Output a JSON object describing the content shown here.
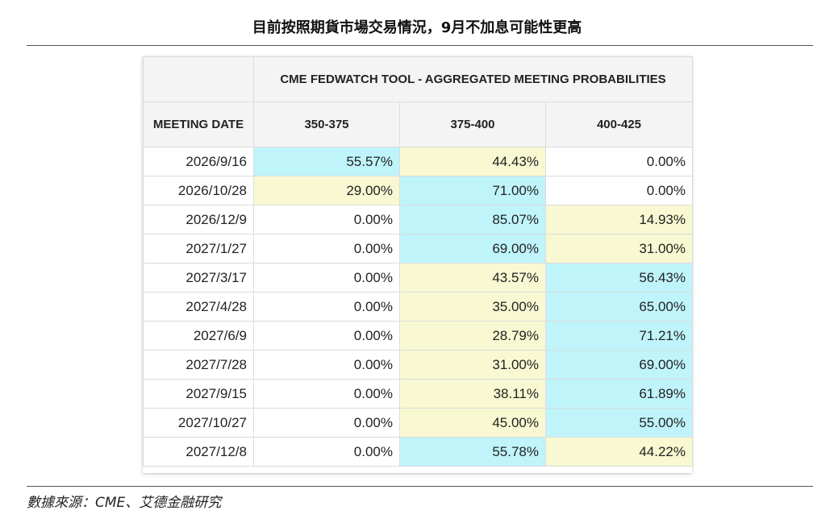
{
  "title": "目前按照期貨市場交易情況，9月不加息可能性更高",
  "source": "數據來源：CME、艾德金融研究",
  "colors": {
    "blue": "#bff4fb",
    "yellow": "#f8f8d2",
    "white": "#ffffff"
  },
  "chart_data": {
    "type": "table",
    "title": "CME FEDWATCH TOOL - AGGREGATED MEETING PROBABILITIES",
    "row_header": "MEETING DATE",
    "columns": [
      "350-375",
      "375-400",
      "400-425"
    ],
    "rows": [
      {
        "date": "2026/9/16",
        "values": [
          "55.57%",
          "44.43%",
          "0.00%"
        ],
        "shade": [
          "blue",
          "yellow",
          "white"
        ]
      },
      {
        "date": "2026/10/28",
        "values": [
          "29.00%",
          "71.00%",
          "0.00%"
        ],
        "shade": [
          "yellow",
          "blue",
          "white"
        ]
      },
      {
        "date": "2026/12/9",
        "values": [
          "0.00%",
          "85.07%",
          "14.93%"
        ],
        "shade": [
          "white",
          "blue",
          "yellow"
        ]
      },
      {
        "date": "2027/1/27",
        "values": [
          "0.00%",
          "69.00%",
          "31.00%"
        ],
        "shade": [
          "white",
          "blue",
          "yellow"
        ]
      },
      {
        "date": "2027/3/17",
        "values": [
          "0.00%",
          "43.57%",
          "56.43%"
        ],
        "shade": [
          "white",
          "yellow",
          "blue"
        ]
      },
      {
        "date": "2027/4/28",
        "values": [
          "0.00%",
          "35.00%",
          "65.00%"
        ],
        "shade": [
          "white",
          "yellow",
          "blue"
        ]
      },
      {
        "date": "2027/6/9",
        "values": [
          "0.00%",
          "28.79%",
          "71.21%"
        ],
        "shade": [
          "white",
          "yellow",
          "blue"
        ]
      },
      {
        "date": "2027/7/28",
        "values": [
          "0.00%",
          "31.00%",
          "69.00%"
        ],
        "shade": [
          "white",
          "yellow",
          "blue"
        ]
      },
      {
        "date": "2027/9/15",
        "values": [
          "0.00%",
          "38.11%",
          "61.89%"
        ],
        "shade": [
          "white",
          "yellow",
          "blue"
        ]
      },
      {
        "date": "2027/10/27",
        "values": [
          "0.00%",
          "45.00%",
          "55.00%"
        ],
        "shade": [
          "white",
          "yellow",
          "blue"
        ]
      },
      {
        "date": "2027/12/8",
        "values": [
          "0.00%",
          "55.78%",
          "44.22%"
        ],
        "shade": [
          "white",
          "blue",
          "yellow"
        ]
      }
    ]
  }
}
